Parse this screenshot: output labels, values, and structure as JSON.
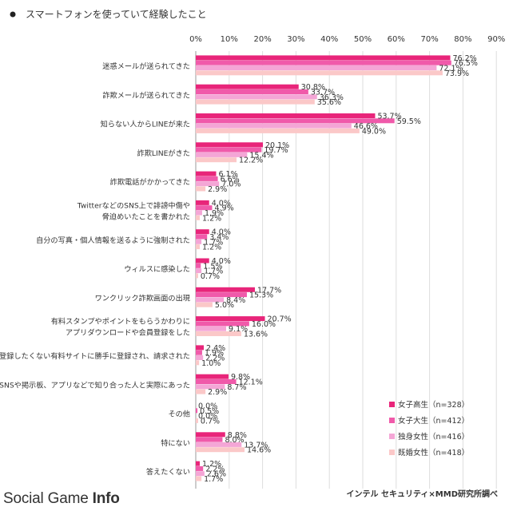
{
  "header": {
    "title": "スマートフォンを使っていて経験したこと"
  },
  "credit": "インテル セキュリティ×MMD研究所調べ",
  "logo": {
    "part1": "Social Game ",
    "part2": "Info"
  },
  "chart_data": {
    "type": "bar",
    "orientation": "horizontal",
    "title": "スマートフォンを使っていて経験したこと",
    "xlim": [
      0,
      90
    ],
    "x_ticks": [
      "0%",
      "10%",
      "20%",
      "30%",
      "40%",
      "50%",
      "60%",
      "70%",
      "80%",
      "90%"
    ],
    "x_tick_values": [
      0,
      10,
      20,
      30,
      40,
      50,
      60,
      70,
      80,
      90
    ],
    "grid": true,
    "legend_position": "bottom-right",
    "categories": [
      [
        "迷惑メールが送られてきた"
      ],
      [
        "詐欺メールが送られてきた"
      ],
      [
        "知らない人からLINEが来た"
      ],
      [
        "詐欺LINEがきた"
      ],
      [
        "詐欺電話がかかってきた"
      ],
      [
        "TwitterなどのSNS上で誹謗中傷や",
        "脅迫めいたことを書かれた"
      ],
      [
        "自分の写真・個人情報を送るように強制された"
      ],
      [
        "ウィルスに感染した"
      ],
      [
        "ワンクリック詐欺画面の出現"
      ],
      [
        "有料スタンプやポイントをもらうかわりに",
        "アプリダウンロードや会員登録をした"
      ],
      [
        "登録したくない有料サイトに勝手に登録され、請求された"
      ],
      [
        "SNSや掲示板、アプリなどで知り合った人と実際にあった"
      ],
      [
        "その他"
      ],
      [
        "特にない"
      ],
      [
        "答えたくない"
      ]
    ],
    "series": [
      {
        "name": "女子高生（n=328）",
        "color": "#e8257a",
        "values": [
          76.2,
          30.8,
          53.7,
          20.1,
          6.1,
          4.0,
          4.0,
          4.0,
          17.7,
          20.7,
          2.4,
          9.8,
          0.0,
          8.8,
          1.2
        ],
        "labels": [
          "76.2%",
          "30.8%",
          "53.7%",
          "20.1%",
          "6.1%",
          "4.0%",
          "4.0%",
          "4.0%",
          "17.7%",
          "20.7%",
          "2.4%",
          "9.8%",
          "0.0%",
          "8.8%",
          "1.2%"
        ]
      },
      {
        "name": "女子大生（n=412）",
        "color": "#f05aaa",
        "values": [
          76.5,
          33.7,
          59.5,
          19.7,
          6.6,
          4.9,
          3.4,
          1.5,
          15.3,
          16.0,
          1.9,
          12.1,
          0.5,
          8.0,
          2.2
        ],
        "labels": [
          "76.5%",
          "33.7%",
          "59.5%",
          "19.7%",
          "6.6%",
          "4.9%",
          "3.4%",
          "1.5%",
          "15.3%",
          "16.0%",
          "1.9%",
          "12.1%",
          "0.5%",
          "8.0%",
          "2.2%"
        ]
      },
      {
        "name": "独身女性（n=416）",
        "color": "#f4a6d6",
        "values": [
          72.1,
          36.3,
          46.6,
          15.4,
          7.0,
          1.9,
          1.7,
          1.7,
          8.4,
          9.1,
          2.2,
          8.7,
          0.0,
          13.7,
          2.6
        ],
        "labels": [
          "72.1%",
          "36.3%",
          "46.6%",
          "15.4%",
          "7.0%",
          "1.9%",
          "1.7%",
          "1.7%",
          "8.4%",
          "9.1%",
          "2.2%",
          "8.7%",
          "0.0%",
          "13.7%",
          "2.6%"
        ]
      },
      {
        "name": "既婚女性（n=418）",
        "color": "#fbc8c8",
        "values": [
          73.9,
          35.6,
          49.0,
          12.2,
          2.9,
          1.2,
          1.2,
          0.7,
          5.0,
          13.6,
          1.0,
          2.9,
          0.7,
          14.6,
          1.7
        ],
        "labels": [
          "73.9%",
          "35.6%",
          "49.0%",
          "12.2%",
          "2.9%",
          "1.2%",
          "1.2%",
          "0.7%",
          "5.0%",
          "13.6%",
          "1.0%",
          "2.9%",
          "0.7%",
          "14.6%",
          "1.7%"
        ]
      }
    ]
  }
}
